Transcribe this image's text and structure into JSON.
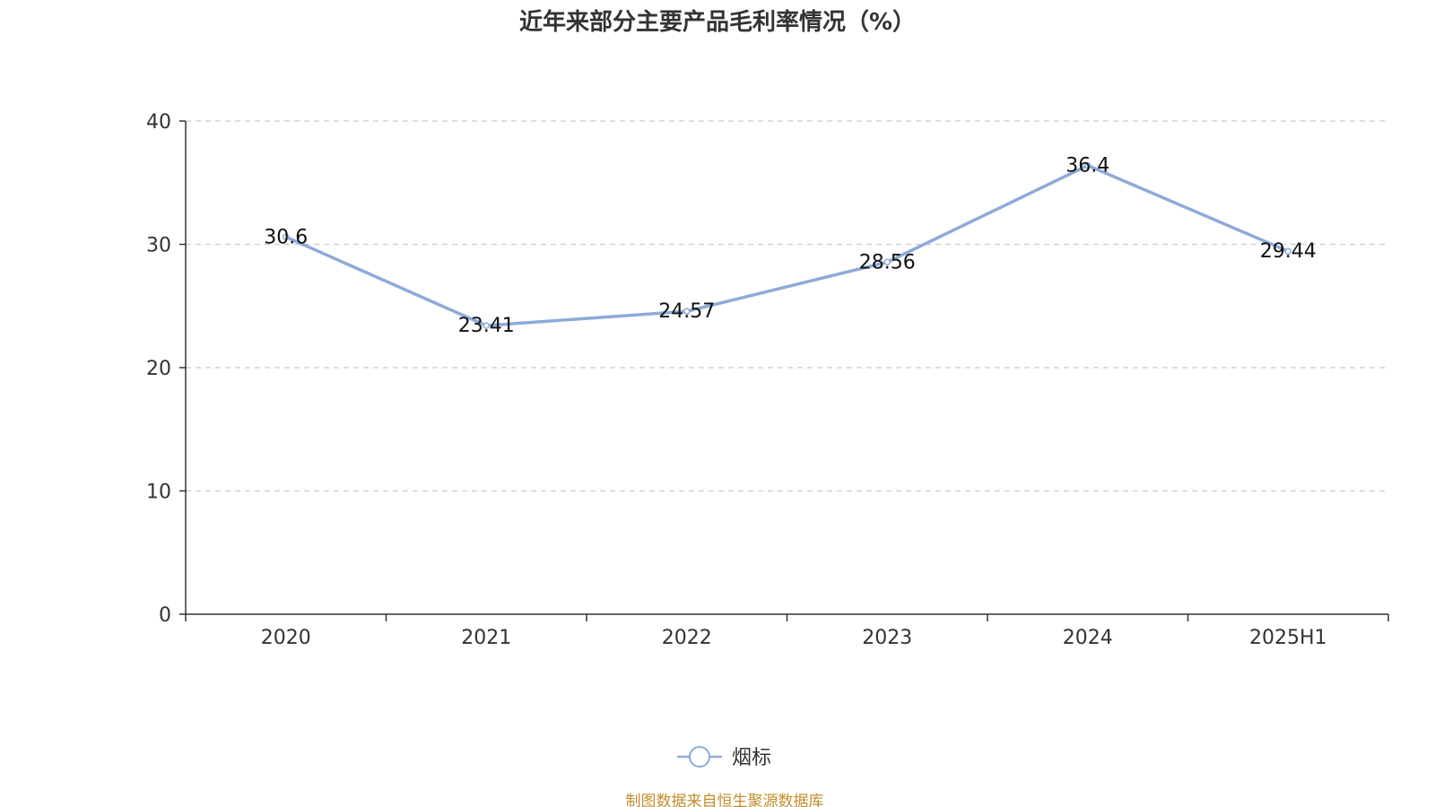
{
  "source_note": "制图数据来自恒生聚源数据库",
  "chart_data": {
    "type": "line",
    "title": "近年来部分主要产品毛利率情况（%）",
    "categories": [
      "2020",
      "2021",
      "2022",
      "2023",
      "2024",
      "2025H1"
    ],
    "series": [
      {
        "name": "烟标",
        "values": [
          30.6,
          23.41,
          24.57,
          28.56,
          36.4,
          29.44
        ],
        "color": "#8eaad8"
      }
    ],
    "ylim": [
      0,
      40
    ],
    "yticks": [
      0,
      10,
      20,
      30,
      40
    ],
    "grid": true,
    "legend_position": "bottom-center",
    "axis_color": "#333333",
    "grid_color": "#cccccc"
  }
}
